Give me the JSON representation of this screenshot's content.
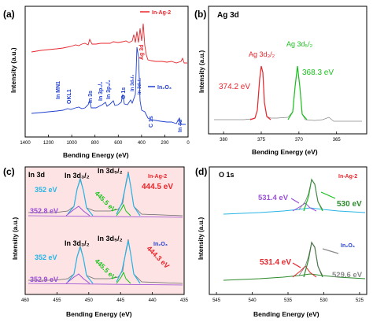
{
  "colors": {
    "red": "#e8252b",
    "blue": "#1f3fd0",
    "green": "#17c21b",
    "purple": "#9b4fd6",
    "cyan": "#27b4e6",
    "pink_bg": "#fde3e3",
    "gray": "#8a8a8a",
    "dark_green": "#2b8a2b"
  },
  "chart_data": [
    {
      "panel": "(a)",
      "type": "line",
      "xlabel": "Bending Energy (eV)",
      "ylabel": "Intensity (a.u.)",
      "xlim": [
        1400,
        0
      ],
      "x_ticks": [
        "1400",
        "1200",
        "1000",
        "800",
        "600",
        "400",
        "200",
        "0"
      ],
      "series": [
        {
          "name": "In-Ag-2",
          "color": "red"
        },
        {
          "name": "In₂O₃",
          "color": "blue"
        }
      ],
      "peak_labels": [
        "Ag 3d",
        "In MN1",
        "OKL1",
        "In 3s",
        "In 3p₁/₂",
        "In 3p₃/₂",
        "O 1s",
        "In 3d₃/₂",
        "In 3d₅/₂",
        "C 1s",
        "In 4d"
      ]
    },
    {
      "panel": "(b)",
      "title": "Ag 3d",
      "type": "line",
      "xlabel": "Bending Energy (eV)",
      "ylabel": "Intensity (a.u.)",
      "xlim": [
        382,
        361
      ],
      "x_ticks": [
        "380",
        "375",
        "370",
        "365"
      ],
      "series": [
        {
          "name": "Ag 3d₃/₂",
          "color": "red",
          "peak": 374.2
        },
        {
          "name": "Ag 3d₅/₂",
          "color": "green",
          "peak": 368.3
        }
      ],
      "annotations": [
        "374.2 eV",
        "368.3 eV"
      ]
    },
    {
      "panel": "(c)",
      "title": "In 3d",
      "type": "line",
      "xlabel": "Bending Energy (eV)",
      "ylabel": "Intensity (a.u.)",
      "xlim": [
        460,
        435
      ],
      "x_ticks": [
        "460",
        "455",
        "450",
        "445",
        "440",
        "435"
      ],
      "samples": [
        {
          "name": "In-Ag-2",
          "peaks": [
            {
              "label": "In 3d₃/₂",
              "values": [
                352,
                352.8
              ]
            },
            {
              "label": "In 3d₅/₂",
              "values": [
                445.5,
                444.5
              ]
            }
          ]
        },
        {
          "name": "In₂O₃",
          "peaks": [
            {
              "label": "In 3d₃/₂",
              "values": [
                352,
                352.9
              ]
            },
            {
              "label": "In 3d₅/₂",
              "values": [
                445.5,
                444.3
              ]
            }
          ]
        }
      ],
      "annotations_top": [
        "352 eV",
        "352.8 eV",
        "445.5 eV",
        "444.5 eV"
      ],
      "annotations_bottom": [
        "352 eV",
        "352.9 eV",
        "445.5 eV",
        "444.3 eV"
      ]
    },
    {
      "panel": "(d)",
      "title": "O 1s",
      "type": "line",
      "xlabel": "Bending Energy (eV)",
      "ylabel": "Intensity (a.u.)",
      "xlim": [
        546,
        524
      ],
      "x_ticks": [
        "545",
        "540",
        "535",
        "530",
        "525"
      ],
      "samples": [
        {
          "name": "In-Ag-2",
          "peaks": [
            531.4,
            530
          ]
        },
        {
          "name": "In₂O₃",
          "peaks": [
            531.4,
            529.6
          ]
        }
      ],
      "annotations_top": [
        "531.4 eV",
        "530 eV"
      ],
      "annotations_bottom": [
        "531.4 eV",
        "529.6 eV"
      ]
    }
  ],
  "labels": {
    "a": {
      "panel": "(a)",
      "legend_red": "In-Ag-2",
      "legend_blue": "In₂O₃",
      "ylabel": "Intensity (a.u.)",
      "xlabel": "Bending Energy (eV)"
    },
    "b": {
      "panel": "(b)",
      "title": "Ag 3d",
      "ylabel": "Intensity (a.u.)",
      "xlabel": "Bending Energy (eV)",
      "peak1": "Ag 3d₃/₂",
      "peak2": "Ag 3d₅/₂",
      "val1": "374.2 eV",
      "val2": "368.3 eV"
    },
    "c": {
      "panel": "(c)",
      "title": "In 3d",
      "ylabel": "Intensity (a.u.)",
      "xlabel": "Bending Energy (eV)",
      "sample_top": "In-Ag-2",
      "sample_bottom": "In₂O₃",
      "p32": "In 3d₃/₂",
      "p52": "In 3d₅/₂",
      "t1": "352 eV",
      "t2": "352.8 eV",
      "t3": "445.5 eV",
      "t4": "444.5 eV",
      "b1": "352 eV",
      "b2": "352.9 eV",
      "b3": "445.5 eV",
      "b4": "444.3 eV"
    },
    "d": {
      "panel": "(d)",
      "title": "O 1s",
      "ylabel": "Intensity (a.u.)",
      "xlabel": "Bending Energy (eV)",
      "sample_top": "In-Ag-2",
      "sample_bottom": "In₂O₃",
      "t1": "531.4 eV",
      "t2": "530 eV",
      "b1": "531.4 eV",
      "b2": "529.6 eV"
    }
  }
}
